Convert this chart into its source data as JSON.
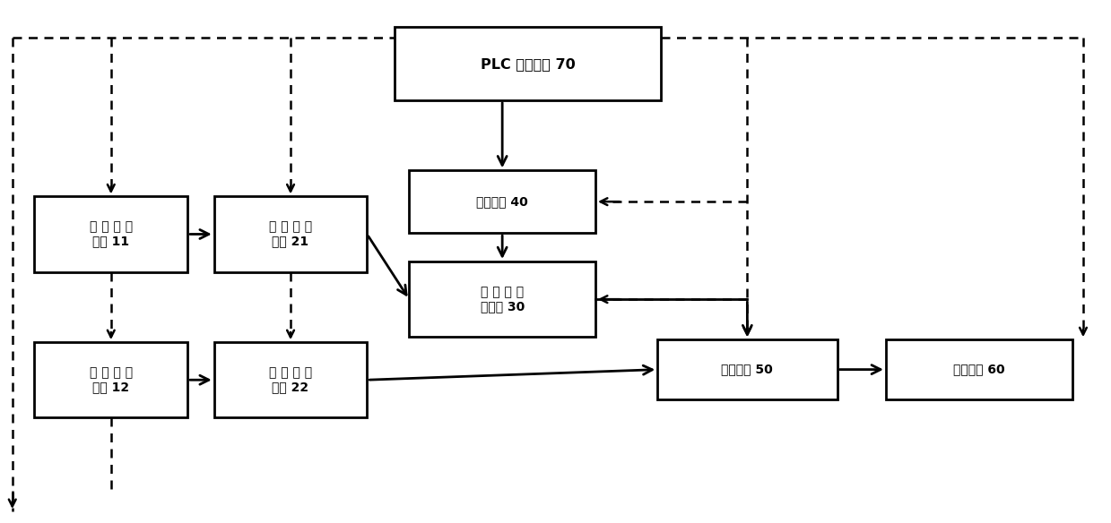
{
  "background_color": "#ffffff",
  "fig_width": 12.39,
  "fig_height": 5.84,
  "dpi": 100,
  "boxes": {
    "plc": [
      0.355,
      0.81,
      0.24,
      0.14
    ],
    "hot": [
      0.368,
      0.555,
      0.168,
      0.12
    ],
    "coat": [
      0.368,
      0.355,
      0.168,
      0.145
    ],
    "b11": [
      0.03,
      0.48,
      0.138,
      0.145
    ],
    "b21": [
      0.192,
      0.48,
      0.138,
      0.145
    ],
    "b12": [
      0.03,
      0.2,
      0.138,
      0.145
    ],
    "b22": [
      0.192,
      0.2,
      0.138,
      0.145
    ],
    "press": [
      0.592,
      0.235,
      0.162,
      0.115
    ],
    "wind": [
      0.798,
      0.235,
      0.168,
      0.115
    ]
  },
  "labels": {
    "plc": "PLC 控制模块 70",
    "hot": "热熔胶机 40",
    "coat": "加 热 型 涂\n布装置 30",
    "b11": "第 一 放 卷\n装置 11",
    "b21": "第 一 张 力\n装置 21",
    "b12": "第 二 放 卷\n装置 12",
    "b22": "第 二 张 力\n装置 22",
    "press": "压合装置 50",
    "wind": "收卷装置 60"
  },
  "lw_solid": 2.0,
  "lw_dashed": 1.8,
  "arrow_solid_scale": 18,
  "arrow_dashed_scale": 14
}
